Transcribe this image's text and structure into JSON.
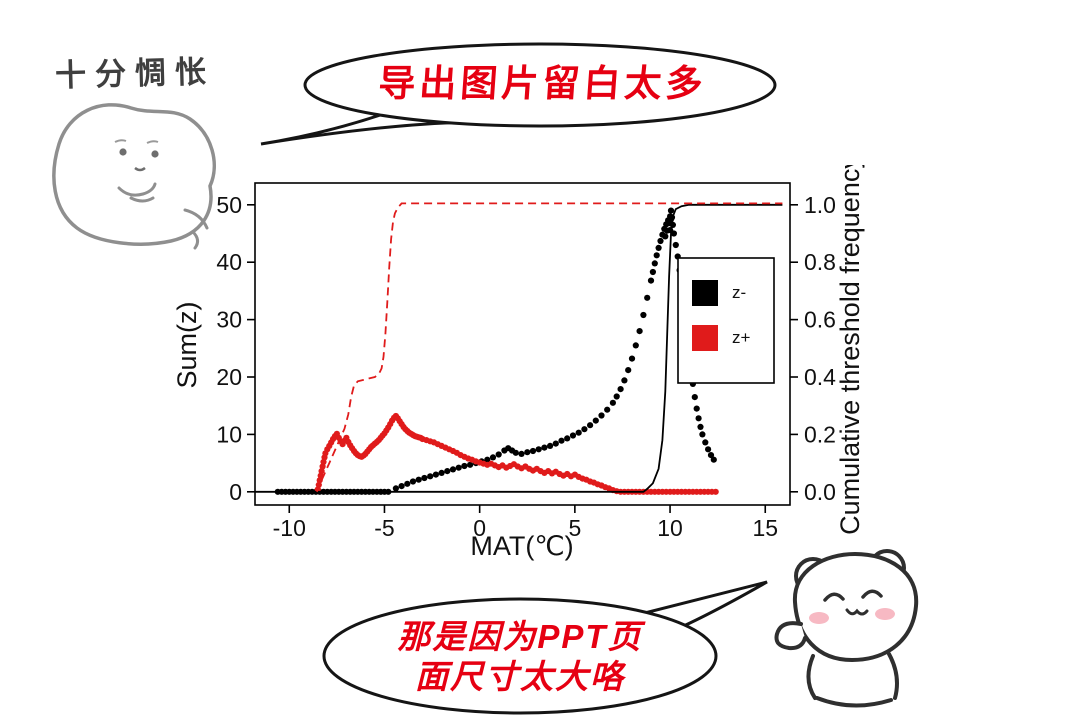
{
  "meme": {
    "top_left_caption": "十分惆怅",
    "top_bubble_text": "导出图片留白太多",
    "bottom_bubble_lines": [
      "那是因为PPT页",
      "面尺寸太大咯"
    ],
    "bubble_text_color": "#e60012",
    "caption_color": "#3f3f3f"
  },
  "chart_data": {
    "type": "scatter",
    "title": "",
    "xlabel": "MAT(℃)",
    "ylabel_left": "Sum(z)",
    "ylabel_right": "Cumulative threshold frequency",
    "xlim": [
      -11.8,
      16.3
    ],
    "ylim_left": [
      -2.3,
      53.8
    ],
    "ylim_right": [
      -0.046,
      1.076
    ],
    "x_ticks": [
      -10,
      -5,
      0,
      5,
      10,
      15
    ],
    "y_ticks_left": [
      0,
      10,
      20,
      30,
      40,
      50
    ],
    "y_ticks_right": [
      0,
      0.2,
      0.4,
      0.6,
      0.8,
      1
    ],
    "grid": false,
    "legend_position": "inside-right",
    "legend": [
      {
        "label": "z-",
        "color": "#000000"
      },
      {
        "label": "z+",
        "color": "#e01b1b"
      }
    ],
    "series": [
      {
        "name": "z- Sum(z)",
        "type": "scatter",
        "axis": "left",
        "color": "#000000",
        "points": [
          [
            -10.6,
            0
          ],
          [
            -10.4,
            0
          ],
          [
            -10.2,
            0
          ],
          [
            -10,
            0
          ],
          [
            -9.8,
            0
          ],
          [
            -9.6,
            0
          ],
          [
            -9.4,
            0
          ],
          [
            -9.2,
            0
          ],
          [
            -9,
            0
          ],
          [
            -8.8,
            0
          ],
          [
            -8.6,
            0
          ],
          [
            -8.4,
            0
          ],
          [
            -8.2,
            0
          ],
          [
            -8,
            0
          ],
          [
            -7.8,
            0
          ],
          [
            -7.6,
            0
          ],
          [
            -7.4,
            0
          ],
          [
            -7.2,
            0
          ],
          [
            -7,
            0
          ],
          [
            -6.8,
            0
          ],
          [
            -6.6,
            0
          ],
          [
            -6.4,
            0
          ],
          [
            -6.2,
            0
          ],
          [
            -6,
            0
          ],
          [
            -5.8,
            0
          ],
          [
            -5.6,
            0
          ],
          [
            -5.4,
            0
          ],
          [
            -5.2,
            0
          ],
          [
            -5,
            0
          ],
          [
            -4.8,
            0
          ],
          [
            -4.4,
            0.6
          ],
          [
            -4.1,
            1
          ],
          [
            -3.8,
            1.4
          ],
          [
            -3.5,
            1.8
          ],
          [
            -3.2,
            2.1
          ],
          [
            -2.9,
            2.4
          ],
          [
            -2.6,
            2.7
          ],
          [
            -2.3,
            3
          ],
          [
            -2,
            3.3
          ],
          [
            -1.7,
            3.6
          ],
          [
            -1.4,
            3.9
          ],
          [
            -1.1,
            4.2
          ],
          [
            -0.8,
            4.5
          ],
          [
            -0.5,
            4.7
          ],
          [
            -0.2,
            5
          ],
          [
            0.1,
            5.3
          ],
          [
            0.4,
            5.6
          ],
          [
            0.7,
            6
          ],
          [
            1,
            6.5
          ],
          [
            1.3,
            7.2
          ],
          [
            1.5,
            7.6
          ],
          [
            1.7,
            7.2
          ],
          [
            1.9,
            6.8
          ],
          [
            2.2,
            6.6
          ],
          [
            2.5,
            6.9
          ],
          [
            2.8,
            7.1
          ],
          [
            3.1,
            7.4
          ],
          [
            3.4,
            7.7
          ],
          [
            3.7,
            8
          ],
          [
            4,
            8.4
          ],
          [
            4.3,
            8.9
          ],
          [
            4.6,
            9.3
          ],
          [
            4.9,
            9.8
          ],
          [
            5.2,
            10.3
          ],
          [
            5.5,
            10.9
          ],
          [
            5.8,
            11.6
          ],
          [
            6.1,
            12.4
          ],
          [
            6.4,
            13.3
          ],
          [
            6.7,
            14.3
          ],
          [
            7,
            15.5
          ],
          [
            7.2,
            16.6
          ],
          [
            7.4,
            17.9
          ],
          [
            7.6,
            19.4
          ],
          [
            7.8,
            21.2
          ],
          [
            8,
            23.2
          ],
          [
            8.2,
            25.5
          ],
          [
            8.4,
            28
          ],
          [
            8.6,
            30.8
          ],
          [
            8.8,
            33.8
          ],
          [
            9,
            36.8
          ],
          [
            9.1,
            38.3
          ],
          [
            9.2,
            39.8
          ],
          [
            9.3,
            41.2
          ],
          [
            9.4,
            42.5
          ],
          [
            9.5,
            43.7
          ],
          [
            9.6,
            44.8
          ],
          [
            9.7,
            45.8
          ],
          [
            9.75,
            44.5
          ],
          [
            9.8,
            46.6
          ],
          [
            9.85,
            45.5
          ],
          [
            9.9,
            47.3
          ],
          [
            9.95,
            46.8
          ],
          [
            10,
            48
          ],
          [
            10,
            45.6
          ],
          [
            10.05,
            49
          ],
          [
            10.05,
            47.5
          ],
          [
            10.1,
            47.8
          ],
          [
            10.15,
            46.5
          ],
          [
            10.2,
            45
          ],
          [
            10.3,
            43
          ],
          [
            10.4,
            41
          ],
          [
            10.5,
            38.6
          ],
          [
            10.6,
            36
          ],
          [
            10.7,
            33
          ],
          [
            10.8,
            30
          ],
          [
            10.9,
            27
          ],
          [
            11,
            24
          ],
          [
            11.1,
            21.3
          ],
          [
            11.2,
            18.8
          ],
          [
            11.3,
            16.5
          ],
          [
            11.4,
            14.5
          ],
          [
            11.5,
            12.8
          ],
          [
            11.6,
            11.3
          ],
          [
            11.7,
            10
          ],
          [
            11.85,
            8.6
          ],
          [
            12,
            7.4
          ],
          [
            12.15,
            6.4
          ],
          [
            12.3,
            5.6
          ]
        ]
      },
      {
        "name": "z+ Sum(z)",
        "type": "scatter",
        "axis": "left",
        "color": "#e01b1b",
        "points": [
          [
            -8.5,
            0.4
          ],
          [
            -8.45,
            1.2
          ],
          [
            -8.4,
            2
          ],
          [
            -8.35,
            2.8
          ],
          [
            -8.3,
            3.6
          ],
          [
            -8.25,
            4.4
          ],
          [
            -8.2,
            5.2
          ],
          [
            -8.15,
            6
          ],
          [
            -8.1,
            6.7
          ],
          [
            -8,
            7.4
          ],
          [
            -7.9,
            8
          ],
          [
            -7.8,
            8.6
          ],
          [
            -7.7,
            9.2
          ],
          [
            -7.6,
            9.7
          ],
          [
            -7.5,
            10.1
          ],
          [
            -7.4,
            9.4
          ],
          [
            -7.3,
            8.8
          ],
          [
            -7.2,
            8.3
          ],
          [
            -7.1,
            8.9
          ],
          [
            -7,
            9.4
          ],
          [
            -6.9,
            8.7
          ],
          [
            -6.8,
            8.1
          ],
          [
            -6.7,
            7.6
          ],
          [
            -6.6,
            7.1
          ],
          [
            -6.5,
            6.7
          ],
          [
            -6.4,
            6.4
          ],
          [
            -6.3,
            6.2
          ],
          [
            -6.2,
            6.1
          ],
          [
            -6.1,
            6.3
          ],
          [
            -6,
            6.6
          ],
          [
            -5.9,
            7
          ],
          [
            -5.8,
            7.4
          ],
          [
            -5.7,
            7.8
          ],
          [
            -5.6,
            8.1
          ],
          [
            -5.5,
            8.4
          ],
          [
            -5.4,
            8.7
          ],
          [
            -5.3,
            9
          ],
          [
            -5.2,
            9.4
          ],
          [
            -5.1,
            9.8
          ],
          [
            -5,
            10.2
          ],
          [
            -4.9,
            10.7
          ],
          [
            -4.8,
            11.2
          ],
          [
            -4.7,
            11.8
          ],
          [
            -4.6,
            12.4
          ],
          [
            -4.5,
            12.9
          ],
          [
            -4.4,
            13.2
          ],
          [
            -4.3,
            12.8
          ],
          [
            -4.2,
            12.3
          ],
          [
            -4.1,
            11.8
          ],
          [
            -4,
            11.3
          ],
          [
            -3.9,
            10.9
          ],
          [
            -3.8,
            10.6
          ],
          [
            -3.7,
            10.3
          ],
          [
            -3.6,
            10.1
          ],
          [
            -3.5,
            9.9
          ],
          [
            -3.4,
            9.7
          ],
          [
            -3.3,
            9.6
          ],
          [
            -3.2,
            9.5
          ],
          [
            -3.1,
            9.4
          ],
          [
            -3,
            9.2
          ],
          [
            -2.8,
            9
          ],
          [
            -2.6,
            8.8
          ],
          [
            -2.4,
            8.6
          ],
          [
            -2.2,
            8.3
          ],
          [
            -2,
            8
          ],
          [
            -1.8,
            7.7
          ],
          [
            -1.6,
            7.4
          ],
          [
            -1.4,
            7.1
          ],
          [
            -1.2,
            6.8
          ],
          [
            -1,
            6.4
          ],
          [
            -0.8,
            6.1
          ],
          [
            -0.6,
            5.8
          ],
          [
            -0.4,
            5.6
          ],
          [
            -0.2,
            5.3
          ],
          [
            0,
            5.1
          ],
          [
            0.2,
            4.9
          ],
          [
            0.4,
            4.7
          ],
          [
            0.6,
            4.9
          ],
          [
            0.8,
            4.6
          ],
          [
            1,
            4.3
          ],
          [
            1.2,
            4.6
          ],
          [
            1.4,
            4.2
          ],
          [
            1.6,
            4.5
          ],
          [
            1.8,
            4.8
          ],
          [
            2,
            4.4
          ],
          [
            2.2,
            4.1
          ],
          [
            2.4,
            4.4
          ],
          [
            2.6,
            4
          ],
          [
            2.8,
            3.7
          ],
          [
            3,
            4
          ],
          [
            3.2,
            3.6
          ],
          [
            3.4,
            3.3
          ],
          [
            3.6,
            3.6
          ],
          [
            3.8,
            3.2
          ],
          [
            4,
            3.5
          ],
          [
            4.2,
            3.1
          ],
          [
            4.4,
            2.8
          ],
          [
            4.6,
            3.1
          ],
          [
            4.8,
            2.7
          ],
          [
            5,
            3
          ],
          [
            5.2,
            2.6
          ],
          [
            5.4,
            2.3
          ],
          [
            5.6,
            2.1
          ],
          [
            5.8,
            1.8
          ],
          [
            6,
            1.6
          ],
          [
            6.2,
            1.3
          ],
          [
            6.4,
            1.1
          ],
          [
            6.6,
            0.8
          ],
          [
            6.8,
            0.6
          ],
          [
            7,
            0.3
          ],
          [
            7.2,
            0.1
          ],
          [
            7.4,
            0
          ],
          [
            7.6,
            0
          ],
          [
            7.8,
            0
          ],
          [
            8,
            0
          ],
          [
            8.2,
            0
          ],
          [
            8.4,
            0
          ],
          [
            8.6,
            0
          ],
          [
            8.8,
            0
          ],
          [
            9,
            0
          ],
          [
            9.2,
            0
          ],
          [
            9.4,
            0
          ],
          [
            9.6,
            0
          ],
          [
            9.8,
            0
          ],
          [
            10,
            0
          ],
          [
            10.2,
            0
          ],
          [
            10.4,
            0
          ],
          [
            10.6,
            0
          ],
          [
            10.8,
            0
          ],
          [
            11,
            0
          ],
          [
            11.2,
            0
          ],
          [
            11.4,
            0
          ],
          [
            11.6,
            0
          ],
          [
            11.8,
            0
          ],
          [
            12,
            0
          ],
          [
            12.2,
            0
          ],
          [
            12.4,
            0
          ]
        ]
      },
      {
        "name": "z- cumulative threshold frequency",
        "type": "line",
        "style": "solid",
        "axis": "right",
        "color": "#000000",
        "points": [
          [
            -11.8,
            0
          ],
          [
            8.6,
            0
          ],
          [
            8.8,
            0.01
          ],
          [
            9.1,
            0.03
          ],
          [
            9.4,
            0.08
          ],
          [
            9.6,
            0.18
          ],
          [
            9.75,
            0.35
          ],
          [
            9.85,
            0.55
          ],
          [
            9.95,
            0.75
          ],
          [
            10.05,
            0.9
          ],
          [
            10.15,
            0.96
          ],
          [
            10.3,
            0.985
          ],
          [
            10.6,
            0.995
          ],
          [
            11,
            1
          ],
          [
            15.9,
            1
          ]
        ]
      },
      {
        "name": "z+ cumulative threshold frequency",
        "type": "line",
        "style": "dashed",
        "axis": "right",
        "color": "#e01b1b",
        "points": [
          [
            -8.55,
            0
          ],
          [
            -8.45,
            0.02
          ],
          [
            -8.3,
            0.04
          ],
          [
            -8.1,
            0.07
          ],
          [
            -7.9,
            0.1
          ],
          [
            -7.7,
            0.13
          ],
          [
            -7.5,
            0.16
          ],
          [
            -7.3,
            0.19
          ],
          [
            -7.1,
            0.22
          ],
          [
            -6.9,
            0.27
          ],
          [
            -6.75,
            0.33
          ],
          [
            -6.6,
            0.37
          ],
          [
            -6.4,
            0.385
          ],
          [
            -6.1,
            0.39
          ],
          [
            -5.8,
            0.395
          ],
          [
            -5.5,
            0.4
          ],
          [
            -5.3,
            0.41
          ],
          [
            -5.15,
            0.43
          ],
          [
            -5.05,
            0.47
          ],
          [
            -4.95,
            0.55
          ],
          [
            -4.85,
            0.66
          ],
          [
            -4.75,
            0.78
          ],
          [
            -4.65,
            0.88
          ],
          [
            -4.55,
            0.94
          ],
          [
            -4.45,
            0.97
          ],
          [
            -4.3,
            0.99
          ],
          [
            -4.1,
            1.005
          ],
          [
            15.9,
            1.005
          ]
        ]
      }
    ]
  }
}
